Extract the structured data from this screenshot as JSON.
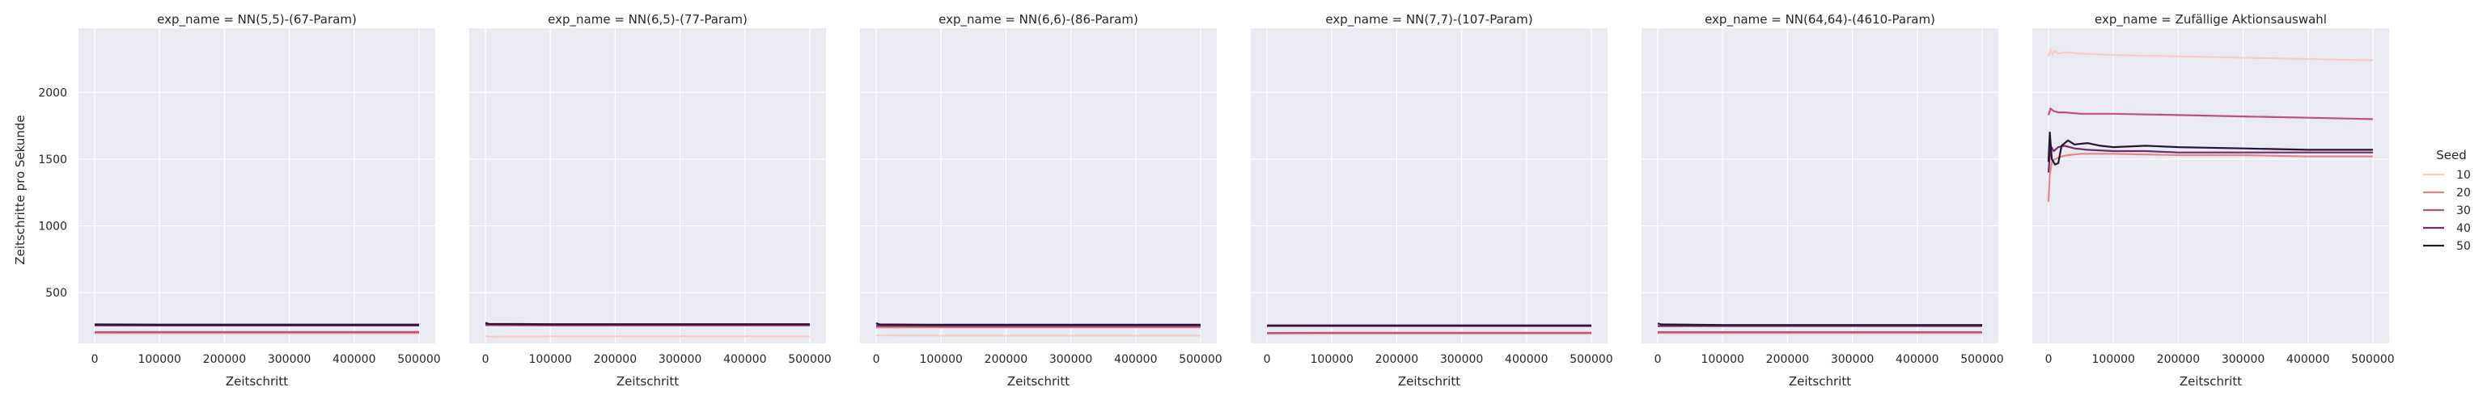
{
  "figure": {
    "ylabel": "Zeitschritte pro Sekunde",
    "legend_title": "Seed"
  },
  "chart_data": [
    {
      "type": "line",
      "title": "exp_name = NN(5,5)-(67-Param)",
      "xlabel": "Zeitschritt",
      "ylabel": "Zeitschritte pro Sekunde",
      "xlim": [
        -25000,
        525000
      ],
      "ylim": [
        120,
        2480
      ],
      "xticks": [
        0,
        100000,
        200000,
        300000,
        400000,
        500000
      ],
      "yticks": [
        500,
        1000,
        1500,
        2000
      ],
      "grid": true,
      "legend_position": "right",
      "series": [
        {
          "name": "10",
          "x": [
            0,
            100000,
            200000,
            300000,
            400000,
            500000
          ],
          "y": [
            195,
            193,
            193,
            193,
            193,
            193
          ]
        },
        {
          "name": "20",
          "x": [
            0,
            100000,
            200000,
            300000,
            400000,
            500000
          ],
          "y": [
            200,
            200,
            200,
            200,
            200,
            200
          ]
        },
        {
          "name": "30",
          "x": [
            0,
            100000,
            200000,
            300000,
            400000,
            500000
          ],
          "y": [
            205,
            206,
            206,
            206,
            206,
            206
          ]
        },
        {
          "name": "40",
          "x": [
            0,
            100000,
            200000,
            300000,
            400000,
            500000
          ],
          "y": [
            255,
            254,
            254,
            254,
            254,
            254
          ]
        },
        {
          "name": "50",
          "x": [
            0,
            100000,
            200000,
            300000,
            400000,
            500000
          ],
          "y": [
            262,
            261,
            261,
            261,
            261,
            261
          ]
        }
      ]
    },
    {
      "type": "line",
      "title": "exp_name = NN(6,5)-(77-Param)",
      "xlabel": "Zeitschritt",
      "ylabel": "",
      "xlim": [
        -25000,
        525000
      ],
      "ylim": [
        120,
        2480
      ],
      "xticks": [
        0,
        100000,
        200000,
        300000,
        400000,
        500000
      ],
      "yticks": [
        500,
        1000,
        1500,
        2000
      ],
      "grid": true,
      "series": [
        {
          "name": "10",
          "x": [
            0,
            5000,
            100000,
            200000,
            300000,
            400000,
            500000
          ],
          "y": [
            175,
            170,
            172,
            172,
            172,
            172,
            172
          ]
        },
        {
          "name": "20",
          "x": [
            0,
            100000,
            200000,
            300000,
            400000,
            500000
          ],
          "y": [
            255,
            253,
            253,
            253,
            253,
            253
          ]
        },
        {
          "name": "30",
          "x": [
            0,
            100000,
            200000,
            300000,
            400000,
            500000
          ],
          "y": [
            258,
            256,
            256,
            256,
            256,
            256
          ]
        },
        {
          "name": "40",
          "x": [
            0,
            100000,
            200000,
            300000,
            400000,
            500000
          ],
          "y": [
            262,
            260,
            260,
            260,
            260,
            260
          ]
        },
        {
          "name": "50",
          "x": [
            0,
            5000,
            100000,
            200000,
            300000,
            400000,
            500000
          ],
          "y": [
            275,
            266,
            264,
            264,
            264,
            264,
            264
          ]
        }
      ]
    },
    {
      "type": "line",
      "title": "exp_name = NN(6,6)-(86-Param)",
      "xlabel": "Zeitschritt",
      "ylabel": "",
      "xlim": [
        -25000,
        525000
      ],
      "ylim": [
        120,
        2480
      ],
      "xticks": [
        0,
        100000,
        200000,
        300000,
        400000,
        500000
      ],
      "yticks": [
        500,
        1000,
        1500,
        2000
      ],
      "grid": true,
      "series": [
        {
          "name": "10",
          "x": [
            0,
            100000,
            200000,
            300000,
            400000,
            500000
          ],
          "y": [
            180,
            178,
            178,
            178,
            178,
            178
          ]
        },
        {
          "name": "20",
          "x": [
            0,
            100000,
            200000,
            300000,
            400000,
            500000
          ],
          "y": [
            240,
            240,
            240,
            240,
            240,
            240
          ]
        },
        {
          "name": "30",
          "x": [
            0,
            100000,
            200000,
            300000,
            400000,
            500000
          ],
          "y": [
            248,
            247,
            247,
            247,
            247,
            247
          ]
        },
        {
          "name": "40",
          "x": [
            0,
            100000,
            200000,
            300000,
            400000,
            500000
          ],
          "y": [
            255,
            253,
            253,
            253,
            253,
            253
          ]
        },
        {
          "name": "50",
          "x": [
            0,
            5000,
            100000,
            200000,
            300000,
            400000,
            500000
          ],
          "y": [
            272,
            262,
            260,
            260,
            260,
            260,
            260
          ]
        }
      ]
    },
    {
      "type": "line",
      "title": "exp_name = NN(7,7)-(107-Param)",
      "xlabel": "Zeitschritt",
      "ylabel": "",
      "xlim": [
        -25000,
        525000
      ],
      "ylim": [
        120,
        2480
      ],
      "xticks": [
        0,
        100000,
        200000,
        300000,
        400000,
        500000
      ],
      "yticks": [
        500,
        1000,
        1500,
        2000
      ],
      "grid": true,
      "series": [
        {
          "name": "10",
          "x": [
            0,
            100000,
            200000,
            300000,
            400000,
            500000
          ],
          "y": [
            190,
            192,
            192,
            192,
            192,
            192
          ]
        },
        {
          "name": "20",
          "x": [
            0,
            100000,
            200000,
            300000,
            400000,
            500000
          ],
          "y": [
            195,
            196,
            196,
            196,
            196,
            196
          ]
        },
        {
          "name": "30",
          "x": [
            0,
            100000,
            200000,
            300000,
            400000,
            500000
          ],
          "y": [
            198,
            200,
            200,
            200,
            200,
            200
          ]
        },
        {
          "name": "40",
          "x": [
            0,
            100000,
            200000,
            300000,
            400000,
            500000
          ],
          "y": [
            250,
            250,
            250,
            250,
            250,
            250
          ]
        },
        {
          "name": "50",
          "x": [
            0,
            100000,
            200000,
            300000,
            400000,
            500000
          ],
          "y": [
            255,
            255,
            255,
            255,
            255,
            255
          ]
        }
      ]
    },
    {
      "type": "line",
      "title": "exp_name = NN(64,64)-(4610-Param)",
      "xlabel": "Zeitschritt",
      "ylabel": "",
      "xlim": [
        -25000,
        525000
      ],
      "ylim": [
        120,
        2480
      ],
      "xticks": [
        0,
        100000,
        200000,
        300000,
        400000,
        500000
      ],
      "yticks": [
        500,
        1000,
        1500,
        2000
      ],
      "grid": true,
      "series": [
        {
          "name": "10",
          "x": [
            0,
            100000,
            200000,
            300000,
            400000,
            500000
          ],
          "y": [
            195,
            195,
            195,
            195,
            195,
            195
          ]
        },
        {
          "name": "20",
          "x": [
            0,
            100000,
            200000,
            300000,
            400000,
            500000
          ],
          "y": [
            200,
            200,
            200,
            200,
            200,
            200
          ]
        },
        {
          "name": "30",
          "x": [
            0,
            100000,
            200000,
            300000,
            400000,
            500000
          ],
          "y": [
            205,
            205,
            205,
            205,
            205,
            205
          ]
        },
        {
          "name": "40",
          "x": [
            0,
            100000,
            200000,
            300000,
            400000,
            500000
          ],
          "y": [
            250,
            250,
            250,
            250,
            250,
            250
          ]
        },
        {
          "name": "50",
          "x": [
            0,
            5000,
            100000,
            200000,
            300000,
            400000,
            500000
          ],
          "y": [
            270,
            262,
            258,
            258,
            258,
            258,
            258
          ]
        }
      ]
    },
    {
      "type": "line",
      "title": "exp_name = Zufällige Aktionsauswahl",
      "xlabel": "Zeitschritt",
      "ylabel": "",
      "xlim": [
        -25000,
        525000
      ],
      "ylim": [
        120,
        2480
      ],
      "xticks": [
        0,
        100000,
        200000,
        300000,
        400000,
        500000
      ],
      "yticks": [
        500,
        1000,
        1500,
        2000
      ],
      "grid": true,
      "series": [
        {
          "name": "10",
          "x": [
            0,
            3000,
            6000,
            10000,
            15000,
            25000,
            50000,
            100000,
            200000,
            300000,
            400000,
            500000
          ],
          "y": [
            2270,
            2330,
            2280,
            2310,
            2290,
            2300,
            2290,
            2280,
            2270,
            2260,
            2250,
            2240
          ]
        },
        {
          "name": "20",
          "x": [
            0,
            2000,
            5000,
            10000,
            20000,
            30000,
            50000,
            100000,
            200000,
            300000,
            400000,
            500000
          ],
          "y": [
            1180,
            1380,
            1480,
            1500,
            1520,
            1530,
            1540,
            1540,
            1530,
            1530,
            1520,
            1520
          ]
        },
        {
          "name": "30",
          "x": [
            0,
            3000,
            8000,
            15000,
            25000,
            50000,
            100000,
            200000,
            300000,
            400000,
            500000
          ],
          "y": [
            1830,
            1880,
            1860,
            1850,
            1850,
            1840,
            1840,
            1830,
            1820,
            1810,
            1800
          ]
        },
        {
          "name": "40",
          "x": [
            0,
            3000,
            8000,
            15000,
            25000,
            40000,
            60000,
            100000,
            150000,
            200000,
            300000,
            400000,
            500000
          ],
          "y": [
            1400,
            1600,
            1560,
            1590,
            1600,
            1580,
            1570,
            1560,
            1560,
            1550,
            1550,
            1550,
            1550
          ]
        },
        {
          "name": "50",
          "x": [
            0,
            2000,
            5000,
            10000,
            15000,
            20000,
            30000,
            40000,
            60000,
            80000,
            100000,
            150000,
            200000,
            300000,
            400000,
            500000
          ],
          "y": [
            1480,
            1700,
            1500,
            1460,
            1470,
            1600,
            1640,
            1610,
            1620,
            1600,
            1590,
            1600,
            1590,
            1580,
            1570,
            1570
          ]
        }
      ]
    }
  ],
  "colors": {
    "10": "#f5cdc4",
    "20": "#e0878c",
    "30": "#b8537d",
    "40": "#742a6a",
    "50": "#261331",
    "panel_bg": "#eaeaf2",
    "grid": "#ffffff",
    "text": "#262626"
  }
}
